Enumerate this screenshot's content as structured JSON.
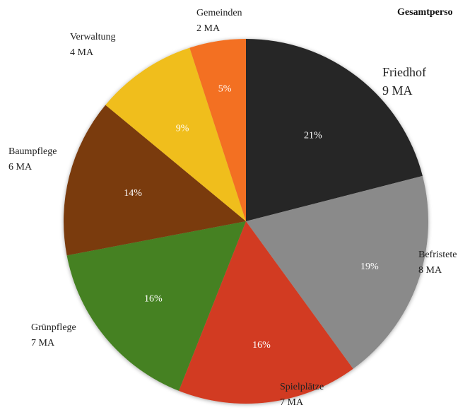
{
  "chart_data": {
    "type": "pie",
    "title": "Gesamtperso",
    "slices": [
      {
        "name": "Friedhof",
        "count": "9 MA",
        "percent": 21,
        "pct_label": "21%",
        "color": "#282828"
      },
      {
        "name": "Befristete",
        "count": "8 MA",
        "percent": 19,
        "pct_label": "19%",
        "color": "#8a8a8a"
      },
      {
        "name": "Spielplätze",
        "count": "7 MA",
        "percent": 16,
        "pct_label": "16%",
        "color": "#d23b21"
      },
      {
        "name": "Grünpflege",
        "count": "7 MA",
        "percent": 16,
        "pct_label": "16%",
        "color": "#458120"
      },
      {
        "name": "Baumpflege",
        "count": "6 MA",
        "percent": 14,
        "pct_label": "14%",
        "color": "#7a3a10"
      },
      {
        "name": "Verwaltung",
        "count": "4 MA",
        "percent": 9,
        "pct_label": "9%",
        "color": "#f0be1e"
      },
      {
        "name": "Gemeinden",
        "count": "2 MA",
        "percent": 5,
        "pct_label": "5%",
        "color": "#f37021"
      }
    ]
  }
}
